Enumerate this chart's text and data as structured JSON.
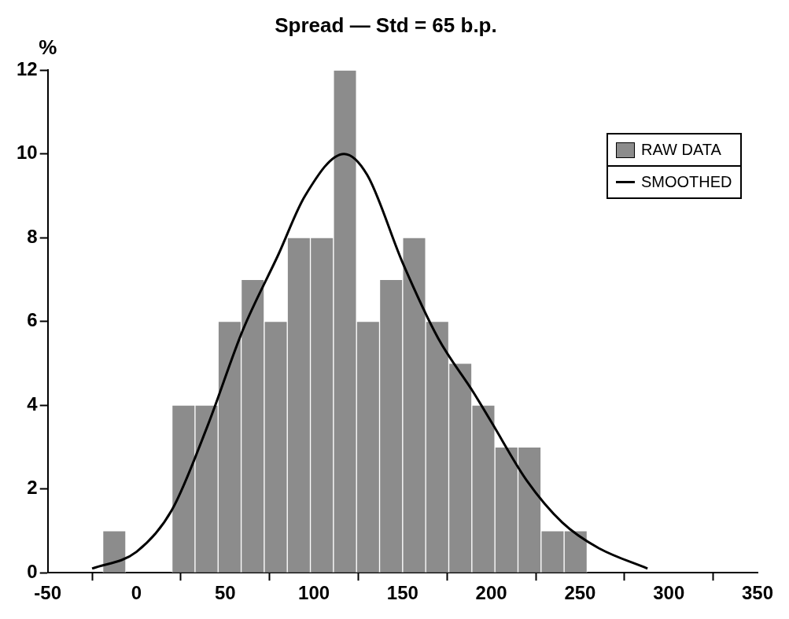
{
  "chart_data": {
    "type": "histogram",
    "title": "Spread — Std = 65 b.p.",
    "ylabel": "%",
    "bins": [
      -19,
      -6,
      7,
      20,
      33,
      46,
      59,
      72,
      85,
      98,
      111,
      124,
      137,
      150,
      163,
      176,
      189,
      202,
      215,
      228,
      241,
      254
    ],
    "series": [
      {
        "name": "RAW DATA",
        "color": "#8c8c8c",
        "values": [
          1,
          0,
          0,
          4,
          4,
          6,
          7,
          6,
          8,
          8,
          12,
          6,
          7,
          8,
          6,
          5,
          4,
          3,
          3,
          1,
          1
        ]
      },
      {
        "name": "SMOOTHED",
        "type": "line",
        "color": "#000000",
        "x": [
          -25,
          0,
          20,
          40,
          60,
          80,
          95,
          117,
          130,
          150,
          170,
          190,
          200,
          220,
          240,
          260,
          288
        ],
        "values": [
          0.1,
          0.5,
          1.5,
          3.5,
          5.8,
          7.6,
          9.0,
          10,
          9.5,
          7.4,
          5.6,
          4.3,
          3.6,
          2.2,
          1.2,
          0.6,
          0.1
        ]
      }
    ],
    "xlim": [
      -50,
      350
    ],
    "xticks": [
      -50,
      0,
      50,
      100,
      150,
      200,
      250,
      300,
      350
    ],
    "ylim": [
      0,
      12
    ],
    "yticks": [
      0,
      2,
      4,
      6,
      8,
      10,
      12
    ],
    "grid": false,
    "legend": "top right",
    "marker": "none",
    "line_style": "solid"
  }
}
